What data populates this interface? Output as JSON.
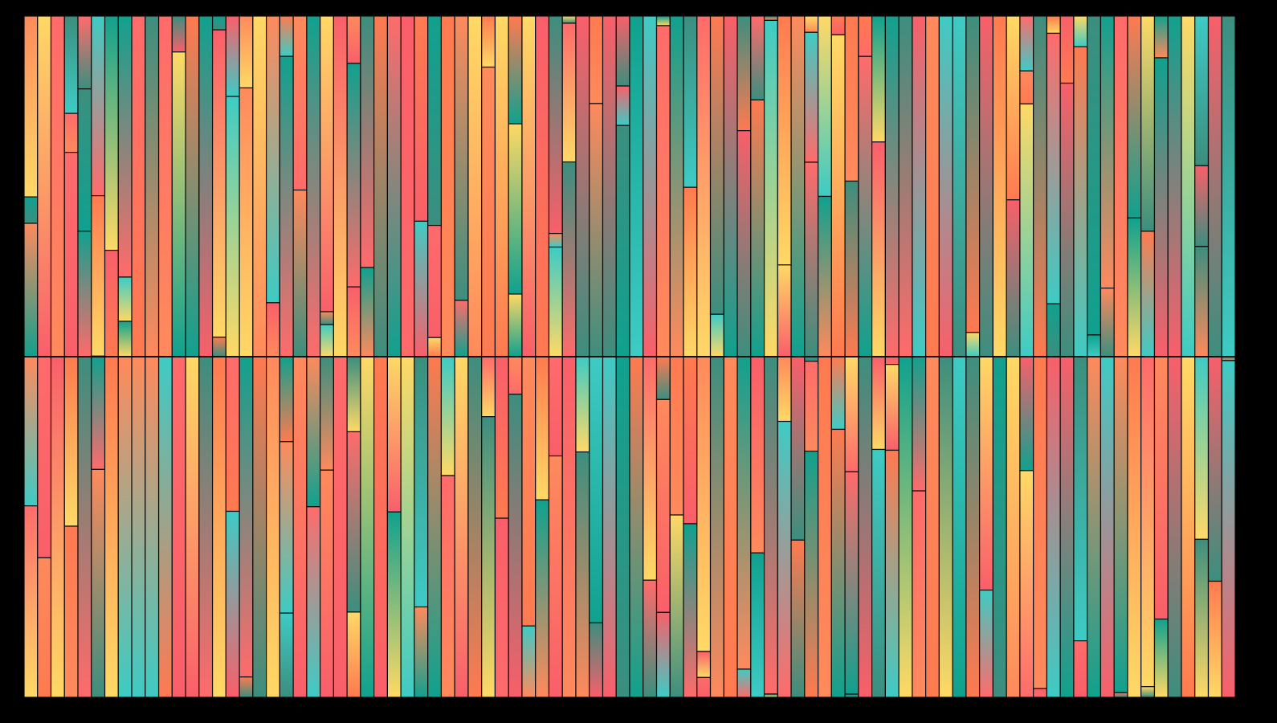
{
  "artwork": {
    "kind": "generative-stripes",
    "background": "#000000",
    "outline": "#0a0a0a",
    "rows": 2,
    "columns_per_row": 90,
    "palette": [
      "#3ecbc4",
      "#10a18e",
      "#3c8e7e",
      "#ffd966",
      "#ff6b6b",
      "#ff8a5c",
      "#ff7a50",
      "#f95f6a"
    ]
  }
}
